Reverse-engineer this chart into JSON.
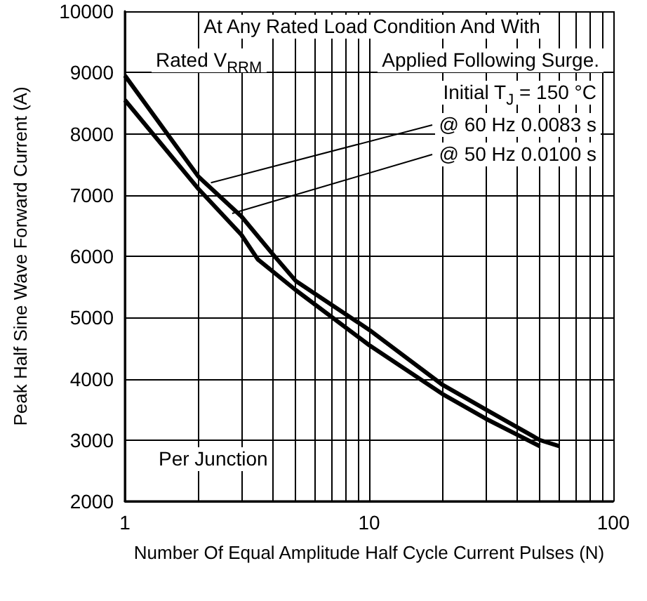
{
  "chart_data": {
    "type": "line",
    "xlabel": "Number Of Equal Amplitude Half Cycle Current Pulses (N)",
    "ylabel": "Peak Half Sine Wave Forward Current (A)",
    "annotations": [
      "At Any Rated Load Condition And With",
      "Rated V$_{RRM}$",
      "Applied Following Surge.",
      "Initial T$_{J}$ = 150 °C",
      {
        "text": "@ 60 Hz 0.0083 s",
        "x": 2.25,
        "y": 7200
      },
      {
        "text": "@ 50 Hz 0.0100 s",
        "x": 2.75,
        "y": 6700
      },
      "Per Junction"
    ],
    "series": [
      {
        "color": "#000000",
        "x": [
          1,
          2,
          3,
          4,
          5,
          10,
          20,
          30,
          50,
          60
        ],
        "values": [
          8950,
          7300,
          6650,
          6050,
          5600,
          4800,
          3900,
          3500,
          3000,
          2900
        ]
      },
      {
        "color": "#000000",
        "x": [
          1,
          2,
          3,
          3.5,
          5,
          10,
          20,
          30,
          50
        ],
        "values": [
          8550,
          7100,
          6350,
          5950,
          5450,
          4550,
          3750,
          3350,
          2900
        ]
      }
    ],
    "log": "x",
    "xlim": [
      1,
      100
    ],
    "xticks": [
      1,
      10,
      100
    ],
    "ylim": [
      2000,
      10000
    ],
    "yticks": [
      2000,
      3000,
      4000,
      5000,
      6000,
      7000,
      8000,
      9000,
      10000
    ],
    "grid": true
  }
}
